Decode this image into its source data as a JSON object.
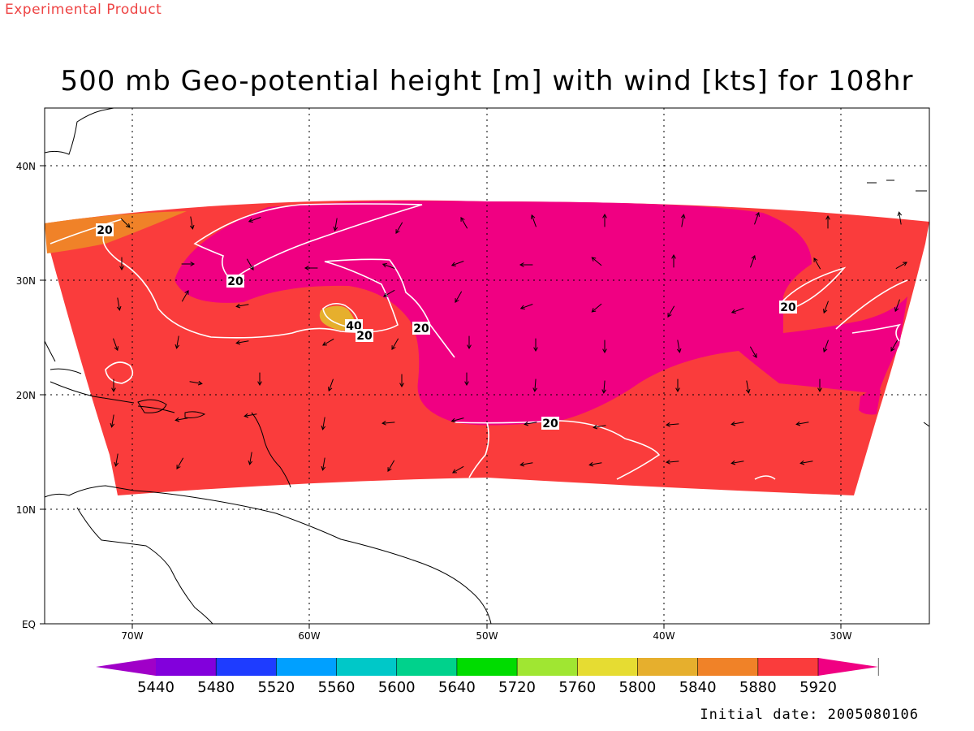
{
  "header": {
    "experimental_label": "Experimental Product",
    "title": "500 mb Geo-potential height [m] with wind [kts] for 108hr"
  },
  "footer": {
    "initial_date": "Initial date: 2005080106"
  },
  "map": {
    "lat_ticks": [
      "EQ",
      "10N",
      "20N",
      "30N",
      "40N"
    ],
    "lon_ticks": [
      "70W",
      "60W",
      "50W",
      "40W",
      "30W"
    ],
    "contour_labels": [
      "20",
      "20",
      "20",
      "20",
      "20",
      "40",
      "20"
    ]
  },
  "colorbar": {
    "ticks": [
      "5440",
      "5480",
      "5520",
      "5560",
      "5600",
      "5640",
      "5720",
      "5760",
      "5800",
      "5840",
      "5880",
      "5920"
    ],
    "colors": [
      "#a000c8",
      "#8200dc",
      "#1e3cff",
      "#00a0ff",
      "#00c8c8",
      "#00d28c",
      "#00dc00",
      "#a0e632",
      "#e6dc32",
      "#e6af2d",
      "#f08228",
      "#fa3c3c",
      "#f00082"
    ]
  },
  "colors": {
    "shade_5880": "#f08228",
    "shade_5920": "#fa3c3c",
    "shade_above": "#f00082",
    "shade_5840": "#e6af2d"
  }
}
